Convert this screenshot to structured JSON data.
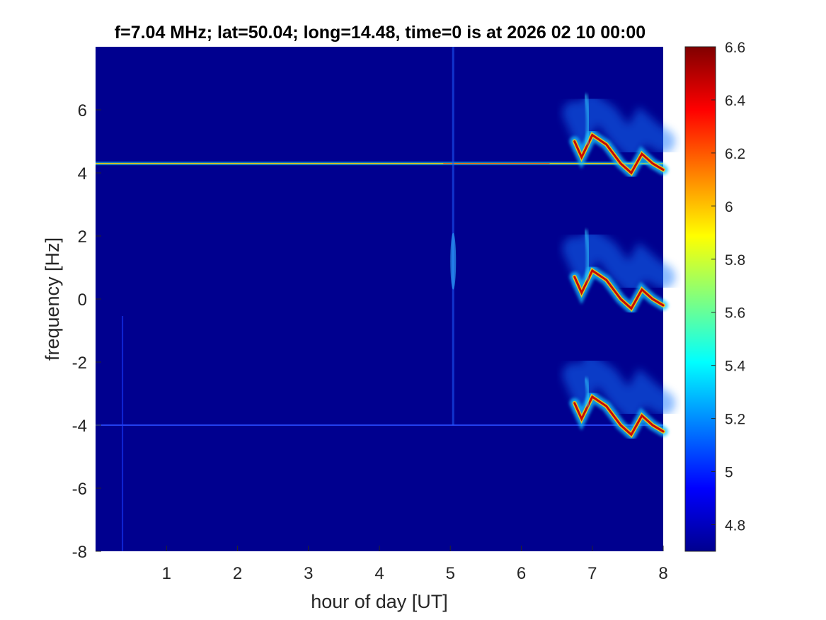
{
  "chart_data": {
    "type": "heatmap",
    "title": "f=7.04 MHz;  lat=50.04; long=14.48, time=0 is at 2026 02 10 00:00",
    "xlabel": "hour of day [UT]",
    "ylabel": "frequency [Hz]",
    "xlim": [
      0,
      8
    ],
    "ylim": [
      -8,
      8
    ],
    "xticks": [
      "1",
      "2",
      "3",
      "4",
      "5",
      "6",
      "7",
      "8"
    ],
    "yticks": [
      "-8",
      "-6",
      "-4",
      "-2",
      "0",
      "2",
      "4",
      "6"
    ],
    "colorbar": {
      "colormap": "jet",
      "clim": [
        4.7,
        6.6
      ],
      "ticks": [
        "4.8",
        "5",
        "5.2",
        "5.4",
        "5.6",
        "5.8",
        "6",
        "6.2",
        "6.4",
        "6.6"
      ]
    },
    "background_color": "#00008f",
    "features": {
      "constant_lines_hz": [
        4.3,
        -4.0
      ],
      "vertical_streaks_hour": [
        0.38,
        5.04
      ],
      "doppler_traces": [
        {
          "hour": [
            6.75,
            6.85,
            7.0,
            7.2,
            7.4,
            7.55,
            7.7,
            7.85,
            8.0
          ],
          "offset_hz": [
            0.7,
            0.2,
            0.9,
            0.6,
            0.0,
            -0.3,
            0.3,
            0.0,
            -0.2
          ]
        }
      ],
      "trace_bands_center_hz": [
        4.3,
        0.0,
        -4.0
      ]
    }
  }
}
